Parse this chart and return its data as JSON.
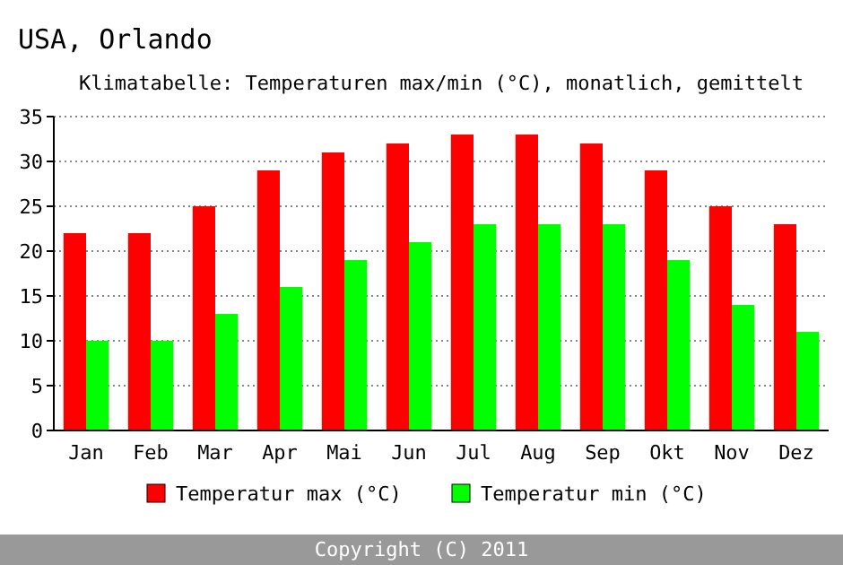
{
  "chart_data": {
    "type": "bar",
    "title": "USA, Orlando",
    "subtitle": "Klimatabelle: Temperaturen max/min (°C), monatlich, gemittelt",
    "categories": [
      "Jan",
      "Feb",
      "Mar",
      "Apr",
      "Mai",
      "Jun",
      "Jul",
      "Aug",
      "Sep",
      "Okt",
      "Nov",
      "Dez"
    ],
    "series": [
      {
        "name": "Temperatur max (°C)",
        "color": "#ff0000",
        "values": [
          22,
          22,
          25,
          29,
          31,
          32,
          33,
          33,
          32,
          29,
          25,
          23
        ]
      },
      {
        "name": "Temperatur min (°C)",
        "color": "#00ff00",
        "values": [
          10,
          10,
          13,
          16,
          19,
          21,
          23,
          23,
          23,
          19,
          14,
          11
        ]
      }
    ],
    "ylim": [
      0,
      35
    ],
    "yticks": [
      0,
      5,
      10,
      15,
      20,
      25,
      30,
      35
    ],
    "grid": "y",
    "legend": "bottom",
    "annotations": [
      "Copyright (C) 2011"
    ]
  }
}
